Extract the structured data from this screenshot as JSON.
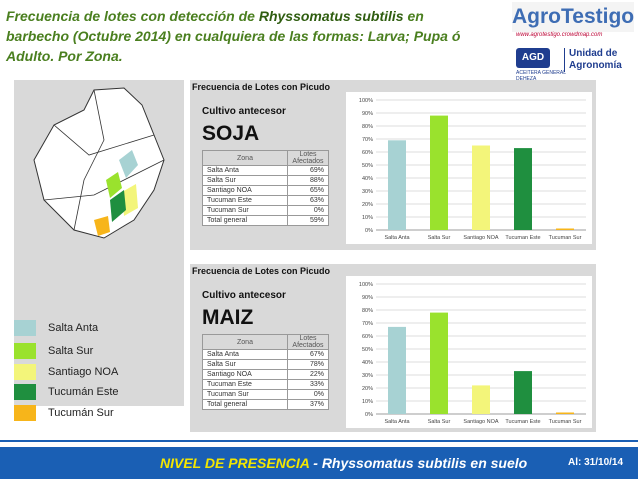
{
  "title": {
    "pre": "Frecuencia de lotes con detección de ",
    "highlight": "Rhyssomatus subtilis",
    "post": " en barbecho (Octubre 2014) en cualquiera de las formas: Larva; Pupa ó Adulto. Por Zona."
  },
  "logo": {
    "brand": "AgroTestigo",
    "url": "www.agrotestigo.crowdmap.com",
    "agd": "AGD",
    "agd_sub": "ACEITERA GENERAL DEHEZA",
    "unit_line1": "Unidad de",
    "unit_line2": "Agronomía"
  },
  "legend": [
    {
      "label": "Salta Anta",
      "color": "#a7d2d3"
    },
    {
      "label": "Salta Sur",
      "color": "#9ae22d"
    },
    {
      "label": "Santiago NOA",
      "color": "#f3f57a"
    },
    {
      "label": "Tucumán Este",
      "color": "#1f8f3f"
    },
    {
      "label": "Tucumán Sur",
      "color": "#f7b51a"
    }
  ],
  "panels": [
    {
      "panel_title": "Frecuencia de Lotes con Picudo",
      "cultivo_label": "Cultivo antecesor",
      "crop": "SOJA",
      "table": {
        "headers": [
          "Zona",
          "Lotes Afectados"
        ],
        "rows": [
          [
            "Salta Anta",
            "69%"
          ],
          [
            "Salta Sur",
            "88%"
          ],
          [
            "Santiago NOA",
            "65%"
          ],
          [
            "Tucuman Este",
            "63%"
          ],
          [
            "Tucuman Sur",
            "0%"
          ],
          [
            "Total general",
            "59%"
          ]
        ]
      }
    },
    {
      "panel_title": "Frecuencia de Lotes con Picudo",
      "cultivo_label": "Cultivo antecesor",
      "crop": "MAIZ",
      "table": {
        "headers": [
          "Zona",
          "Lotes Afectados"
        ],
        "rows": [
          [
            "Salta Anta",
            "67%"
          ],
          [
            "Salta Sur",
            "78%"
          ],
          [
            "Santiago NOA",
            "22%"
          ],
          [
            "Tucuman Este",
            "33%"
          ],
          [
            "Tucuman Sur",
            "0%"
          ],
          [
            "Total general",
            "37%"
          ]
        ]
      }
    }
  ],
  "chart_data": [
    {
      "type": "bar",
      "categories": [
        "Salta Anta",
        "Salta Sur",
        "Santiago NOA",
        "Tucuman Este",
        "Tucuman Sur"
      ],
      "values": [
        69,
        88,
        65,
        63,
        0
      ],
      "colors": [
        "#a7d2d3",
        "#9ae22d",
        "#f3f57a",
        "#1f8f3f",
        "#f7b51a"
      ],
      "ylim": [
        0,
        100
      ],
      "yticks": [
        "0%",
        "10%",
        "20%",
        "30%",
        "40%",
        "50%",
        "60%",
        "70%",
        "80%",
        "90%",
        "100%"
      ],
      "grid": true
    },
    {
      "type": "bar",
      "categories": [
        "Salta Anta",
        "Salta Sur",
        "Santiago NOA",
        "Tucuman Este",
        "Tucuman Sur"
      ],
      "values": [
        67,
        78,
        22,
        33,
        0
      ],
      "colors": [
        "#a7d2d3",
        "#9ae22d",
        "#f3f57a",
        "#1f8f3f",
        "#f7b51a"
      ],
      "ylim": [
        0,
        100
      ],
      "yticks": [
        "0%",
        "10%",
        "20%",
        "30%",
        "40%",
        "50%",
        "60%",
        "70%",
        "80%",
        "90%",
        "100%"
      ],
      "grid": true
    }
  ],
  "footer": {
    "highlight": "NIVEL DE PRESENCIA",
    "rest": " - Rhyssomatus subtilis en suelo",
    "date": "Al: 31/10/14"
  }
}
